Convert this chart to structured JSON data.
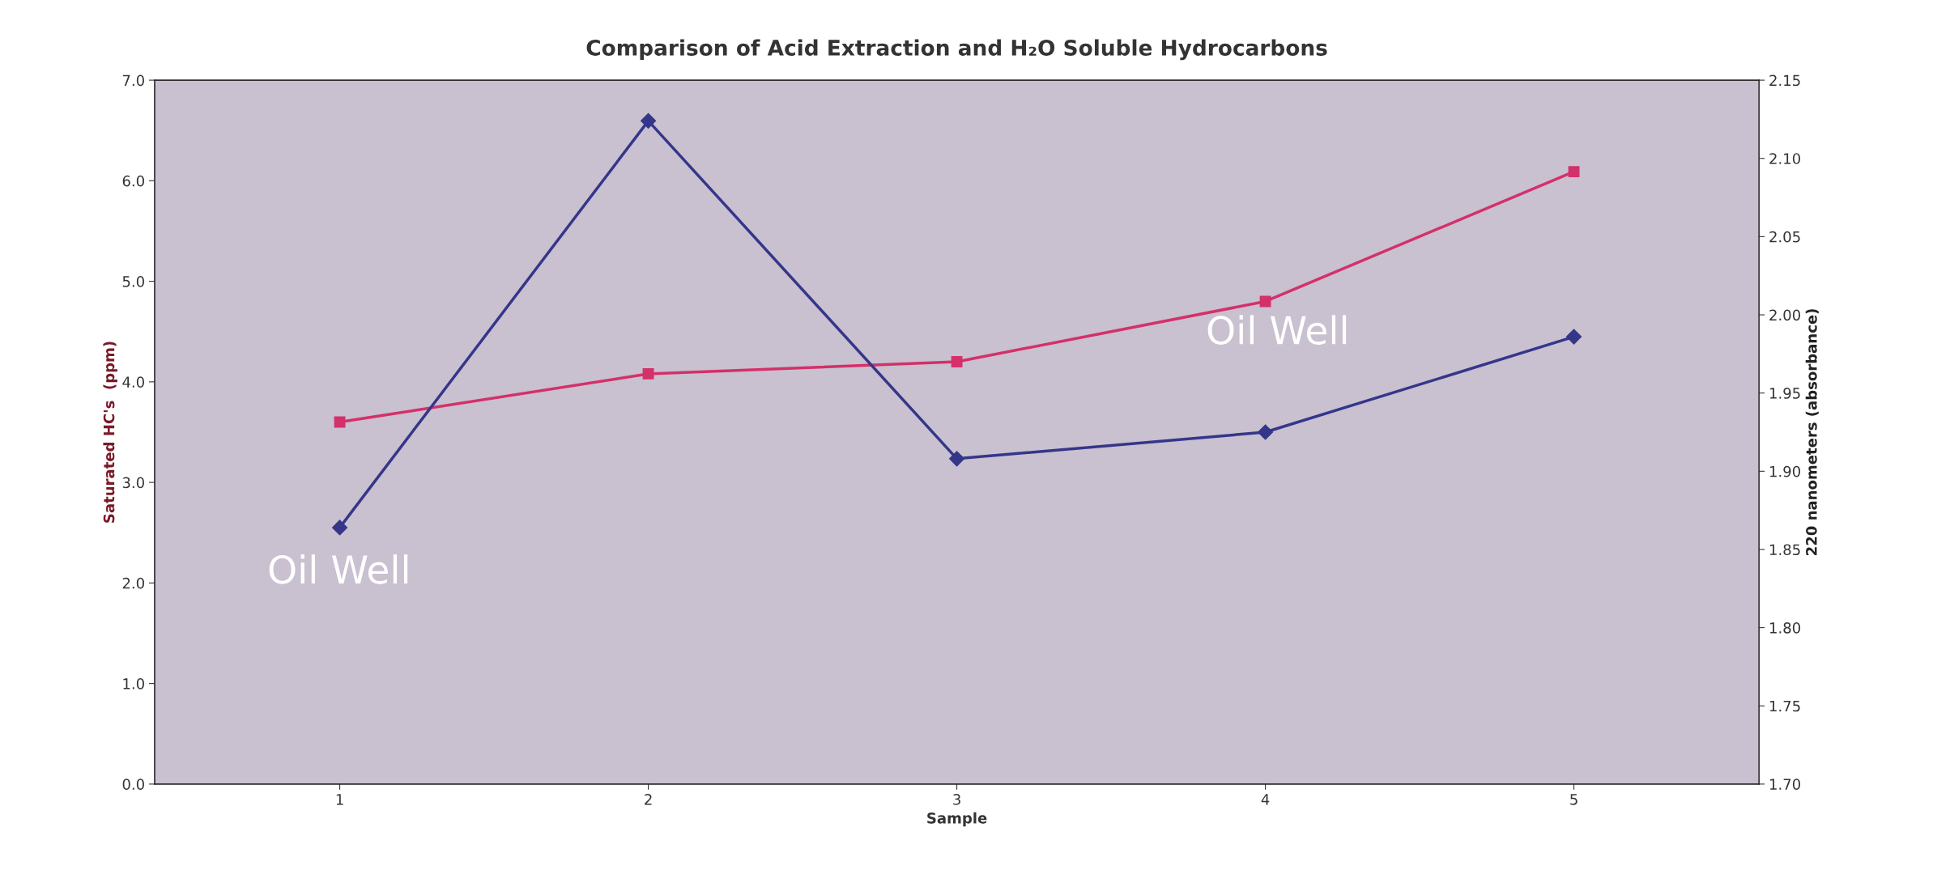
{
  "chart_data": {
    "type": "line",
    "title": "Comparison of Acid Extraction and H₂O Soluble Hydrocarbons",
    "xlabel": "Sample",
    "ylabel": "Saturated HC's  (ppm)",
    "y2label": "220 nanometers (absorbance)",
    "categories": [
      "1",
      "2",
      "3",
      "4",
      "5"
    ],
    "series": [
      {
        "color": "#d4306a",
        "marker": "square",
        "values": [
          3.6,
          4.08,
          4.2,
          4.8,
          6.09
        ]
      },
      {
        "color": "#35368a",
        "marker": "diamond",
        "axis": "y2",
        "values": [
          1.864,
          2.124,
          1.908,
          1.925,
          1.986
        ]
      }
    ],
    "ylim": [
      0,
      7
    ],
    "yticks": [
      {
        "value": 0,
        "label": "0.0"
      },
      {
        "value": 1,
        "label": "1.0"
      },
      {
        "value": 2,
        "label": "2.0"
      },
      {
        "value": 3,
        "label": "3.0"
      },
      {
        "value": 4,
        "label": "4.0"
      },
      {
        "value": 5,
        "label": "5.0"
      },
      {
        "value": 6,
        "label": "6.0"
      },
      {
        "value": 7,
        "label": "7.0"
      }
    ],
    "y2lim": [
      1.7,
      2.15
    ],
    "y2ticks": [
      {
        "value": 1.7,
        "label": "1.70"
      },
      {
        "value": 1.75,
        "label": "1.75"
      },
      {
        "value": 1.8,
        "label": "1.80"
      },
      {
        "value": 1.85,
        "label": "1.85"
      },
      {
        "value": 1.9,
        "label": "1.90"
      },
      {
        "value": 1.95,
        "label": "1.95"
      },
      {
        "value": 2.0,
        "label": "2.00"
      },
      {
        "value": 2.05,
        "label": "2.05"
      },
      {
        "value": 2.1,
        "label": "2.10"
      },
      {
        "value": 2.15,
        "label": "2.15"
      }
    ],
    "annotations": [
      "Oil Well",
      "Oil Well"
    ]
  }
}
